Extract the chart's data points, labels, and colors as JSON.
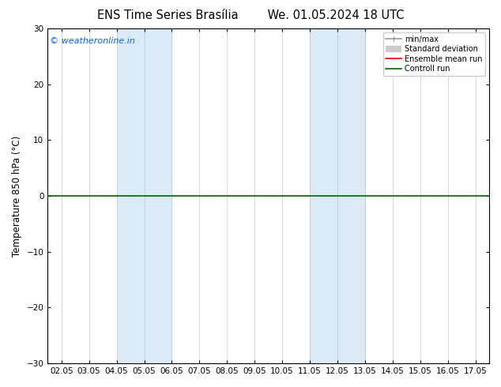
{
  "title_left": "ENS Time Series Brasília",
  "title_right": "We. 01.05.2024 18 UTC",
  "ylabel": "Temperature 850 hPa (°C)",
  "ylim": [
    -30,
    30
  ],
  "yticks": [
    -30,
    -20,
    -10,
    0,
    10,
    20,
    30
  ],
  "xlabel_dates": [
    "02.05",
    "03.05",
    "04.05",
    "05.05",
    "06.05",
    "07.05",
    "08.05",
    "09.05",
    "10.05",
    "11.05",
    "12.05",
    "13.05",
    "14.05",
    "15.05",
    "16.05",
    "17.05"
  ],
  "shaded_regions": [
    {
      "xstart": 2,
      "xend": 4,
      "color": "#daeaf6"
    },
    {
      "xstart": 9,
      "xend": 11,
      "color": "#daeaf6"
    }
  ],
  "hline_y": 0,
  "hline_color": "#006600",
  "hline_lw": 1.2,
  "copyright_text": "© weatheronline.in",
  "copyright_color": "#0066ff",
  "legend_items": [
    {
      "label": "min/max",
      "color": "#999999",
      "lw": 1.2
    },
    {
      "label": "Standard deviation",
      "color": "#cccccc",
      "lw": 6
    },
    {
      "label": "Ensemble mean run",
      "color": "#ff0000",
      "lw": 1.2
    },
    {
      "label": "Controll run",
      "color": "#006600",
      "lw": 1.2
    }
  ],
  "bg_color": "#ffffff",
  "plot_bg_color": "#ffffff",
  "spine_color": "#000000",
  "tick_color": "#000000",
  "title_fontsize": 10.5,
  "tick_fontsize": 7.5,
  "ylabel_fontsize": 8.5,
  "copyright_fontsize": 8
}
